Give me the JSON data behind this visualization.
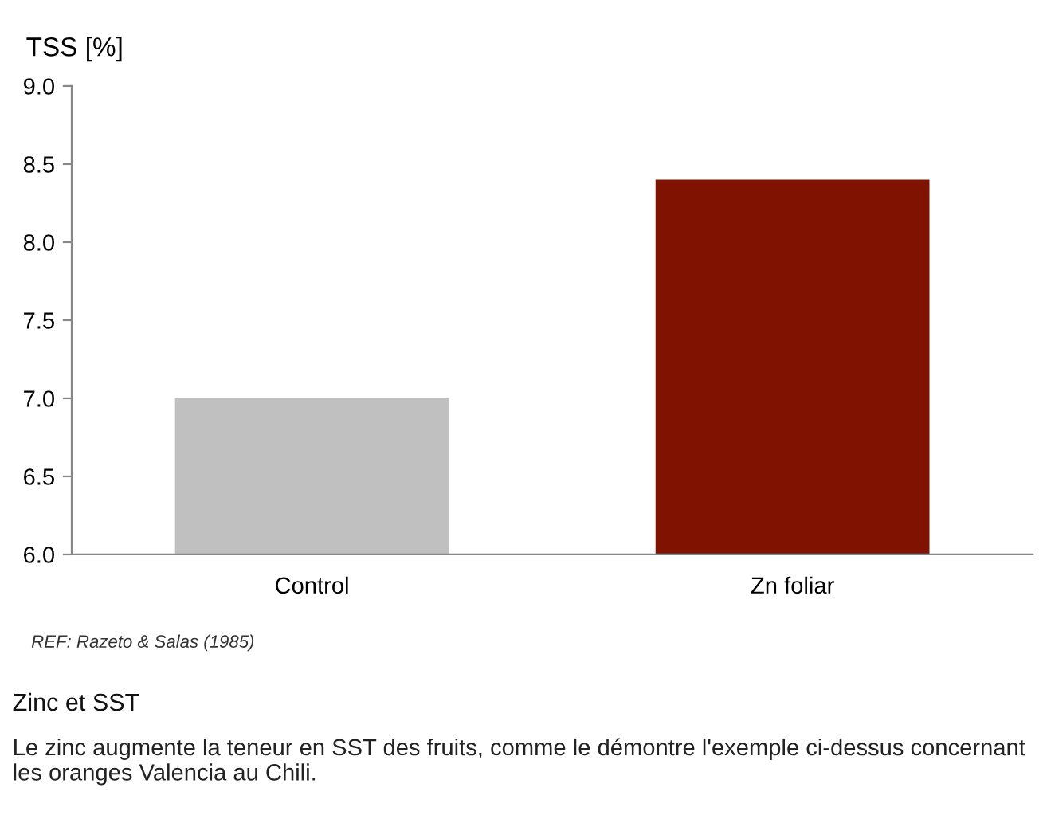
{
  "chart_data": {
    "type": "bar",
    "ylabel": "TSS [%]",
    "categories": [
      "Control",
      "Zn foliar"
    ],
    "values": [
      7.0,
      8.4
    ],
    "colors": [
      "#c0c0c0",
      "#7f1200"
    ],
    "ylim": [
      6.0,
      9.0
    ],
    "yticks": [
      {
        "value": 6.0,
        "label": "6.0"
      },
      {
        "value": 6.5,
        "label": "6.5"
      },
      {
        "value": 7.0,
        "label": "7.0"
      },
      {
        "value": 7.5,
        "label": "7.5"
      },
      {
        "value": 8.0,
        "label": "8.0"
      },
      {
        "value": 8.5,
        "label": "8.5"
      },
      {
        "value": 9.0,
        "label": "9.0"
      }
    ],
    "grid": false,
    "legend": false,
    "annotations": [
      "REF: Razeto & Salas (1985)",
      "Zinc et SST",
      "Le zinc augmente la teneur en SST des fruits, comme le démontre l'exemple ci-dessus concernant les oranges Valencia au Chili."
    ]
  }
}
